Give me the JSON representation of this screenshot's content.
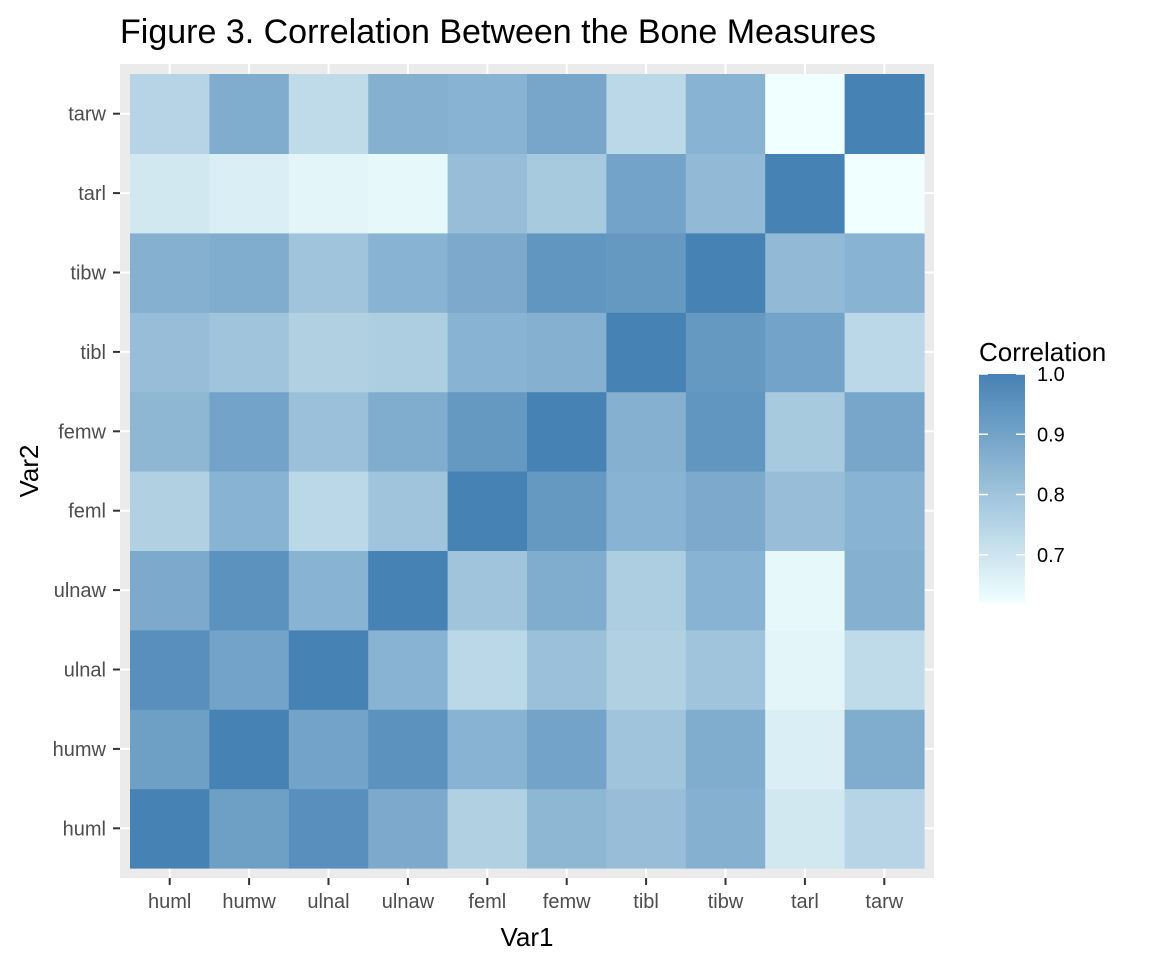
{
  "chart_data": {
    "type": "heatmap",
    "title": "Figure 3. Correlation Between the Bone Measures",
    "xlabel": "Var1",
    "ylabel": "Var2",
    "x_categories": [
      "huml",
      "humw",
      "ulnal",
      "ulnaw",
      "feml",
      "femw",
      "tibl",
      "tibw",
      "tarl",
      "tarw"
    ],
    "y_categories": [
      "huml",
      "humw",
      "ulnal",
      "ulnaw",
      "feml",
      "femw",
      "tibl",
      "tibw",
      "tarl",
      "tarw"
    ],
    "values": [
      [
        1.0,
        0.91,
        0.96,
        0.88,
        0.76,
        0.84,
        0.82,
        0.86,
        0.69,
        0.75
      ],
      [
        0.91,
        1.0,
        0.9,
        0.95,
        0.85,
        0.9,
        0.8,
        0.87,
        0.67,
        0.87
      ],
      [
        0.96,
        0.9,
        1.0,
        0.85,
        0.74,
        0.81,
        0.76,
        0.8,
        0.65,
        0.73
      ],
      [
        0.88,
        0.95,
        0.85,
        1.0,
        0.8,
        0.87,
        0.77,
        0.85,
        0.64,
        0.86
      ],
      [
        0.76,
        0.85,
        0.74,
        0.8,
        1.0,
        0.93,
        0.85,
        0.88,
        0.82,
        0.85
      ],
      [
        0.84,
        0.9,
        0.81,
        0.87,
        0.93,
        1.0,
        0.86,
        0.94,
        0.78,
        0.89
      ],
      [
        0.82,
        0.8,
        0.76,
        0.77,
        0.85,
        0.86,
        1.0,
        0.93,
        0.9,
        0.74
      ],
      [
        0.86,
        0.87,
        0.8,
        0.85,
        0.88,
        0.94,
        0.93,
        1.0,
        0.83,
        0.85
      ],
      [
        0.69,
        0.67,
        0.65,
        0.64,
        0.82,
        0.78,
        0.9,
        0.83,
        1.0,
        0.62
      ],
      [
        0.75,
        0.87,
        0.73,
        0.86,
        0.85,
        0.89,
        0.74,
        0.85,
        0.62,
        1.0
      ]
    ],
    "value_range": [
      0.62,
      1.0
    ],
    "colors": {
      "low": "#f0ffff",
      "high": "#4682b4",
      "panel_bg": "#ebebeb",
      "grid": "#ffffff"
    },
    "legend": {
      "title": "Correlation",
      "position": "right",
      "ticks": [
        0.7,
        0.8,
        0.9,
        1.0
      ],
      "tick_labels": [
        "0.7",
        "0.8",
        "0.9",
        "1.0"
      ]
    }
  }
}
